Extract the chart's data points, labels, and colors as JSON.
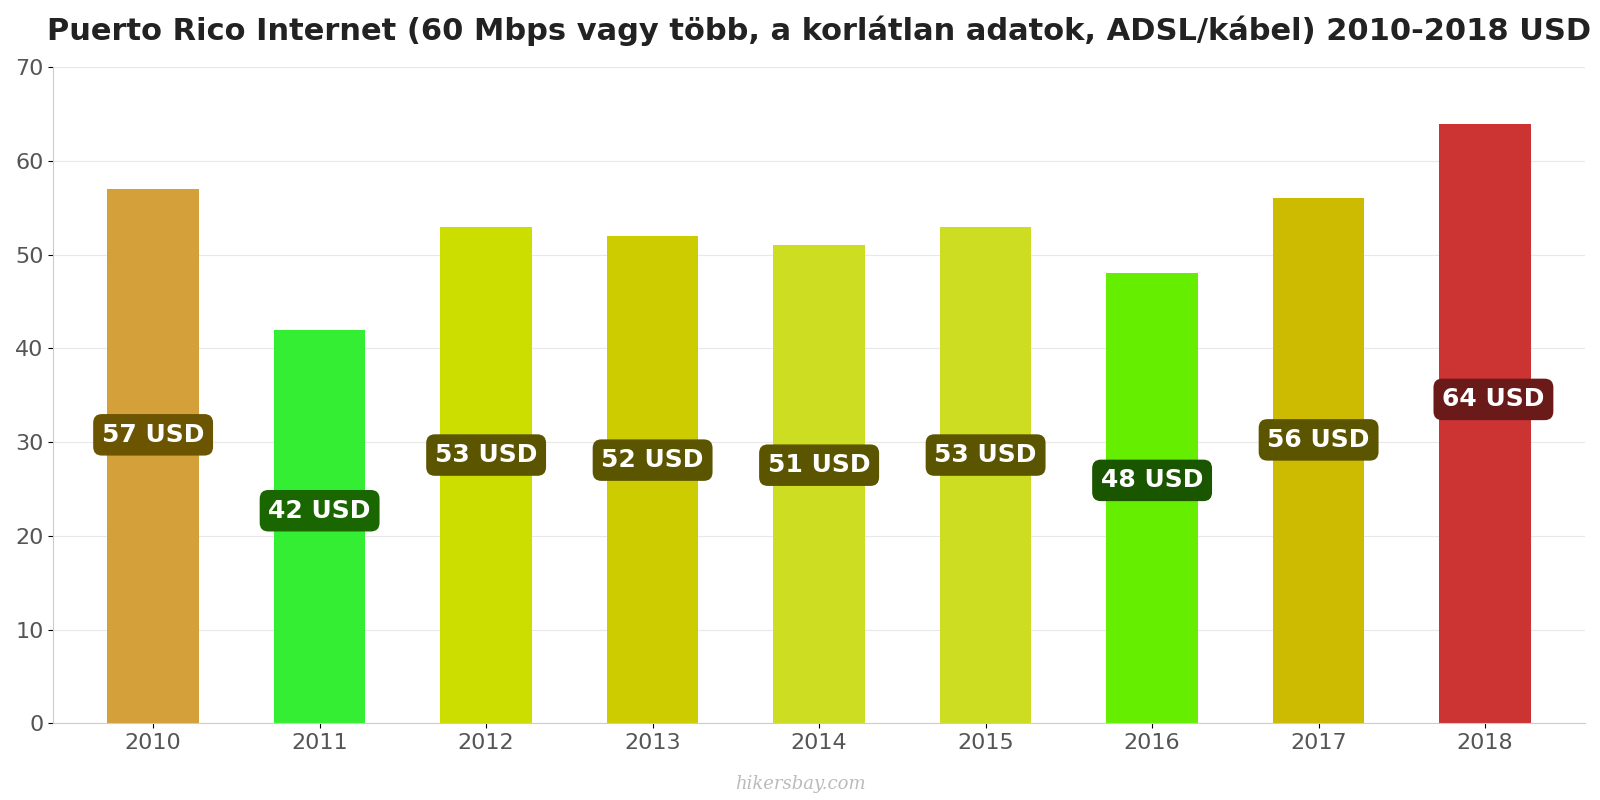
{
  "title": "Puerto Rico Internet (60 Mbps vagy több, a korlátlan adatok, ADSL/kábel) 2010-2018 USD",
  "years": [
    2010,
    2011,
    2012,
    2013,
    2014,
    2015,
    2016,
    2017,
    2018
  ],
  "values": [
    57,
    42,
    53,
    52,
    51,
    53,
    48,
    56,
    64
  ],
  "bar_colors": [
    "#D4A03A",
    "#33EE33",
    "#CCDD00",
    "#CCCC00",
    "#CCDD22",
    "#CCDD22",
    "#66EE00",
    "#CCBB00",
    "#CC3333"
  ],
  "label_bg_colors": [
    "#6B5500",
    "#1A6600",
    "#5C5500",
    "#5C5500",
    "#5C5500",
    "#5C5500",
    "#1A5500",
    "#5C5500",
    "#6B1A1A"
  ],
  "ylim": [
    0,
    70
  ],
  "yticks": [
    0,
    10,
    20,
    30,
    40,
    50,
    60,
    70
  ],
  "watermark": "hikersbay.com",
  "title_fontsize": 22,
  "tick_fontsize": 16,
  "label_fontsize": 18,
  "bar_width": 0.55
}
